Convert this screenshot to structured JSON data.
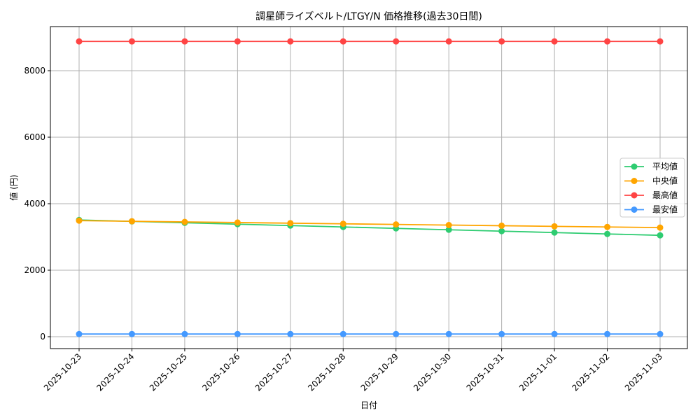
{
  "chart_data": {
    "type": "line",
    "title": "調星師ライズベルト/LTGY/N 価格推移(過去30日間)",
    "xlabel": "日付",
    "ylabel": "値 (円)",
    "categories": [
      "2025-10-23",
      "2025-10-24",
      "2025-10-25",
      "2025-10-26",
      "2025-10-27",
      "2025-10-28",
      "2025-10-29",
      "2025-10-30",
      "2025-10-31",
      "2025-11-01",
      "2025-11-02",
      "2025-11-03"
    ],
    "ylim": [
      -358,
      9326
    ],
    "yticks": [
      0,
      2000,
      4000,
      6000,
      8000
    ],
    "grid": true,
    "legend_position": "center-right",
    "series": [
      {
        "name": "平均値",
        "color": "#2ecc71",
        "values": [
          3510,
          3468,
          3426,
          3384,
          3342,
          3300,
          3258,
          3216,
          3174,
          3132,
          3090,
          3048
        ]
      },
      {
        "name": "中央値",
        "color": "#ffa500",
        "values": [
          3490,
          3471,
          3452,
          3433,
          3414,
          3395,
          3376,
          3357,
          3338,
          3319,
          3300,
          3281
        ]
      },
      {
        "name": "最高値",
        "color": "#ff4444",
        "values": [
          8880,
          8880,
          8880,
          8880,
          8880,
          8880,
          8880,
          8880,
          8880,
          8880,
          8880,
          8880
        ]
      },
      {
        "name": "最安値",
        "color": "#4499ff",
        "values": [
          80,
          80,
          80,
          80,
          80,
          80,
          80,
          80,
          80,
          80,
          80,
          80
        ]
      }
    ]
  }
}
